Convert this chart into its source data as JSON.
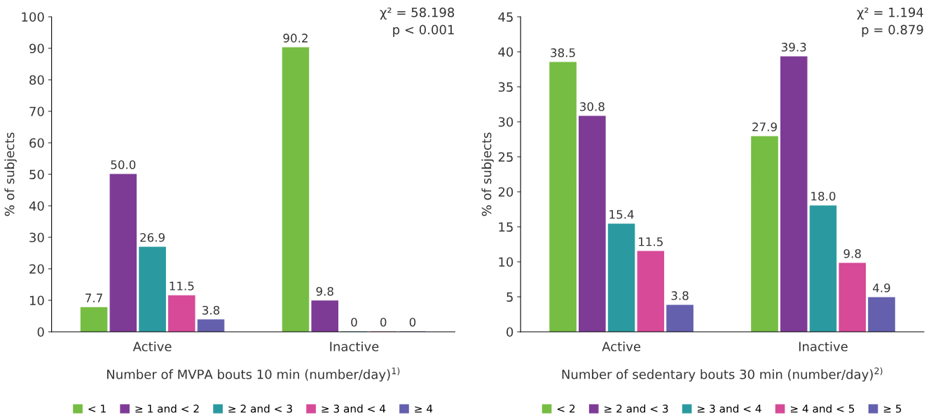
{
  "chart_data": [
    {
      "type": "bar",
      "xlabel": "Number of MVPA bouts 10 min (number/day)$^{1)}$",
      "ylabel": "% of subjects",
      "categories": [
        "Active",
        "Inactive"
      ],
      "series": [
        {
          "name": "< 1",
          "color": "#76bd43",
          "values": [
            7.7,
            90.2
          ],
          "value_labels": [
            "7.7",
            "90.2"
          ]
        },
        {
          "name": "≥ 1 and < 2",
          "color": "#7e3b96",
          "values": [
            50.0,
            9.8
          ],
          "value_labels": [
            "50.0",
            "9.8"
          ]
        },
        {
          "name": "≥ 2 and < 3",
          "color": "#2a9aa0",
          "values": [
            26.9,
            0
          ],
          "value_labels": [
            "26.9",
            "0"
          ]
        },
        {
          "name": "≥ 3 and < 4",
          "color": "#d64a98",
          "values": [
            11.5,
            0
          ],
          "value_labels": [
            "11.5",
            "0"
          ]
        },
        {
          "name": "≥ 4",
          "color": "#6460ae",
          "values": [
            3.8,
            0
          ],
          "value_labels": [
            "3.8",
            "0"
          ]
        }
      ],
      "ylim": [
        0,
        100
      ],
      "yticks": [
        0,
        10,
        20,
        30,
        40,
        50,
        60,
        70,
        80,
        90,
        100
      ],
      "grid": false,
      "legend": "bottom",
      "annotations": [
        "χ² = 58.198",
        "p < 0.001"
      ]
    },
    {
      "type": "bar",
      "xlabel": "Number of sedentary bouts 30 min (number/day)$^{2)}$",
      "ylabel": "% of subjects",
      "categories": [
        "Active",
        "Inactive"
      ],
      "series": [
        {
          "name": "< 2",
          "color": "#76bd43",
          "values": [
            38.5,
            27.9
          ],
          "value_labels": [
            "38.5",
            "27.9"
          ]
        },
        {
          "name": "≥ 2 and < 3",
          "color": "#7e3b96",
          "values": [
            30.8,
            39.3
          ],
          "value_labels": [
            "30.8",
            "39.3"
          ]
        },
        {
          "name": "≥ 3 and < 4",
          "color": "#2a9aa0",
          "values": [
            15.4,
            18.0
          ],
          "value_labels": [
            "15.4",
            "18.0"
          ]
        },
        {
          "name": "≥ 4 and < 5",
          "color": "#d64a98",
          "values": [
            11.5,
            9.8
          ],
          "value_labels": [
            "11.5",
            "9.8"
          ]
        },
        {
          "name": "≥ 5",
          "color": "#6460ae",
          "values": [
            3.8,
            4.9
          ],
          "value_labels": [
            "3.8",
            "4.9"
          ]
        }
      ],
      "ylim": [
        0,
        45
      ],
      "yticks": [
        0,
        5,
        10,
        15,
        20,
        25,
        30,
        35,
        40,
        45
      ],
      "grid": false,
      "legend": "bottom",
      "annotations": [
        "χ² = 1.194",
        "p = 0.879"
      ]
    }
  ]
}
